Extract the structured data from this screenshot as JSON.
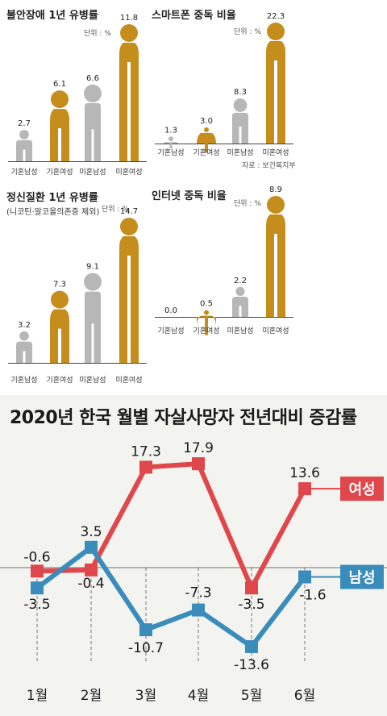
{
  "panels": [
    {
      "id": "anxiety",
      "title": "불안장애 1년 유병률",
      "subtitle": "",
      "unit": "단위 : %",
      "source": "",
      "categories": [
        "기혼남성",
        "기혼여성",
        "미혼남성",
        "미혼여성"
      ],
      "values": [
        2.7,
        6.1,
        6.6,
        11.8
      ]
    },
    {
      "id": "smartphone",
      "title": "스마트폰 중독 비율",
      "subtitle": "",
      "unit": "단위 : %",
      "source": "자료 : 보건복지부",
      "categories": [
        "기혼남성",
        "기혼여성",
        "미혼남성",
        "미혼여성"
      ],
      "values": [
        1.3,
        3.0,
        8.3,
        22.3
      ]
    },
    {
      "id": "mental",
      "title": "정신질환 1년 유병률",
      "subtitle": "(니코틴·알코올의존증 제외)",
      "unit": "단위 : %",
      "source": "",
      "categories": [
        "기혼남성",
        "기혼여성",
        "미혼남성",
        "미혼여성"
      ],
      "values": [
        3.2,
        7.3,
        9.1,
        14.7
      ]
    },
    {
      "id": "internet",
      "title": "인터넷 중독 비율",
      "subtitle": "",
      "unit": "단위 : %",
      "source": "",
      "categories": [
        "기혼남성",
        "기혼여성",
        "미혼남성",
        "미혼여성"
      ],
      "values": [
        0.0,
        0.5,
        2.2,
        8.9
      ]
    }
  ],
  "colors": {
    "male": "#b7b7b7",
    "female": "#c48d1c",
    "women_line": "#e0474c",
    "men_line": "#3a8dbb",
    "bg_bottom": "#f3f3f0"
  },
  "line_chart": {
    "title": "2020년 한국 월별 자살사망자 전년대비 증감률",
    "months": [
      "1월",
      "2월",
      "3월",
      "4월",
      "5월",
      "6월"
    ],
    "women_label": "여성",
    "men_label": "남성"
  },
  "chart_data": [
    {
      "type": "bar",
      "title": "불안장애 1년 유병률",
      "categories": [
        "기혼남성",
        "기혼여성",
        "미혼남성",
        "미혼여성"
      ],
      "values": [
        2.7,
        6.1,
        6.6,
        11.8
      ],
      "ylabel": "단위 : %"
    },
    {
      "type": "bar",
      "title": "스마트폰 중독 비율",
      "categories": [
        "기혼남성",
        "기혼여성",
        "미혼남성",
        "미혼여성"
      ],
      "values": [
        1.3,
        3.0,
        8.3,
        22.3
      ],
      "ylabel": "단위 : %"
    },
    {
      "type": "bar",
      "title": "정신질환 1년 유병률",
      "categories": [
        "기혼남성",
        "기혼여성",
        "미혼남성",
        "미혼여성"
      ],
      "values": [
        3.2,
        7.3,
        9.1,
        14.7
      ],
      "ylabel": "단위 : %"
    },
    {
      "type": "bar",
      "title": "인터넷 중독 비율",
      "categories": [
        "기혼남성",
        "기혼여성",
        "미혼남성",
        "미혼여성"
      ],
      "values": [
        0.0,
        0.5,
        2.2,
        8.9
      ],
      "ylabel": "단위 : %"
    },
    {
      "type": "line",
      "title": "2020년 한국 월별 자살사망자 전년대비 증감률",
      "x": [
        "1월",
        "2월",
        "3월",
        "4월",
        "5월",
        "6월"
      ],
      "series": [
        {
          "name": "여성",
          "values": [
            -0.6,
            -0.4,
            17.3,
            17.9,
            -3.5,
            13.6
          ],
          "labels": [
            "-0.6",
            "-0.4",
            "17.3",
            "17.9",
            "-3.5",
            "13.6"
          ]
        },
        {
          "name": "남성",
          "values": [
            -3.5,
            3.5,
            -10.7,
            -7.3,
            -13.6,
            -1.6
          ],
          "labels": [
            "-3.5",
            "3.5",
            "-10.7",
            "-7.3",
            "-13.6",
            "-1.6"
          ]
        }
      ]
    }
  ]
}
